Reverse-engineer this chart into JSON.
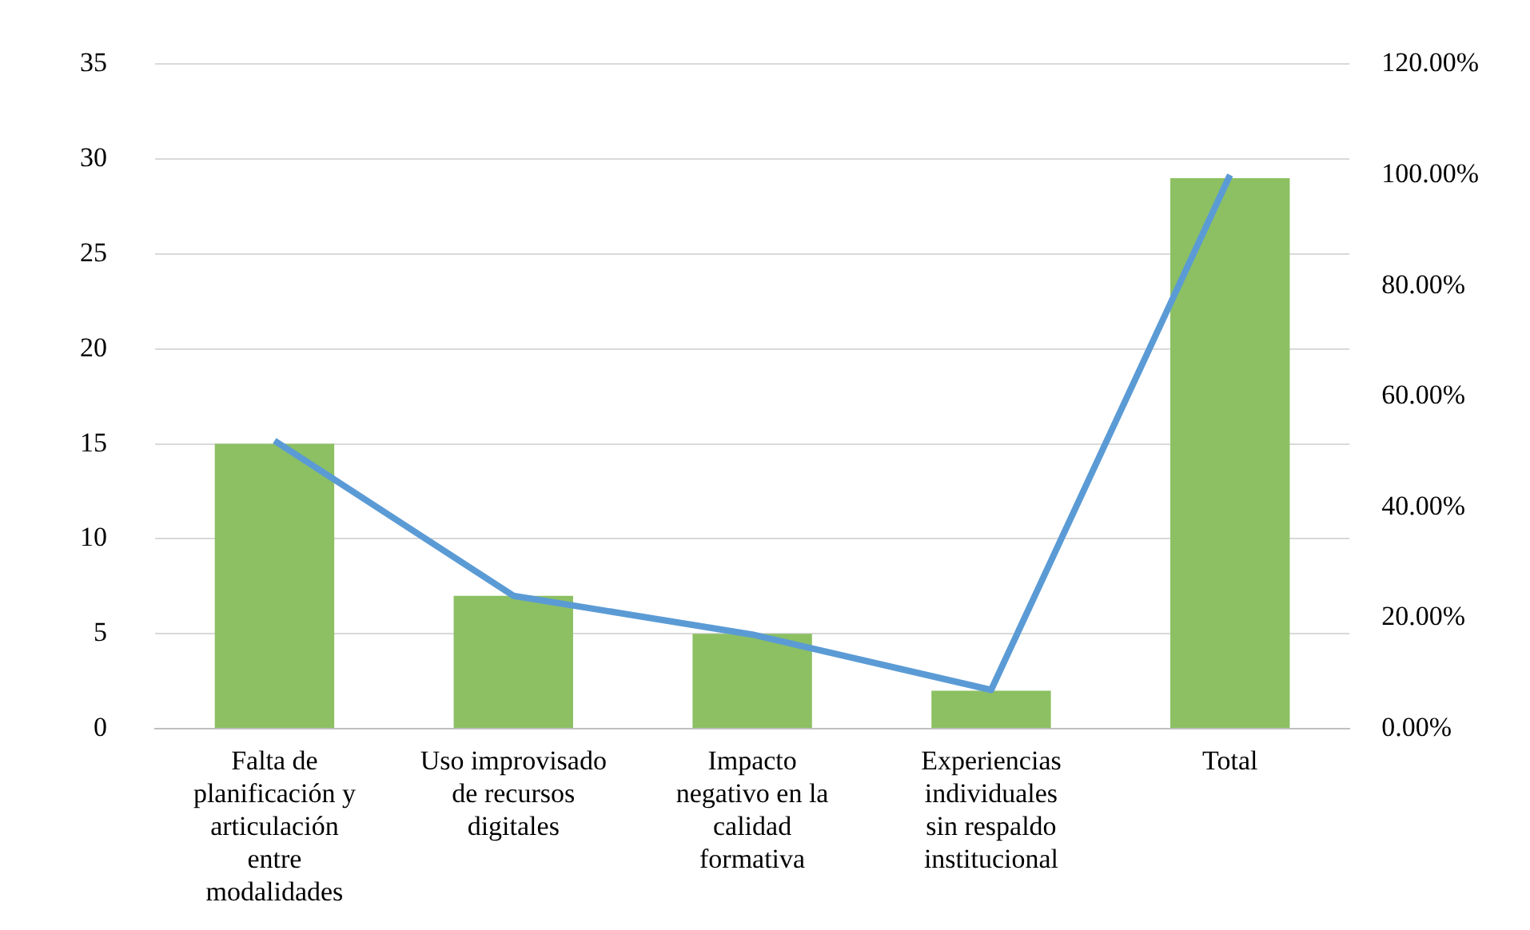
{
  "chart_data": {
    "type": "bar",
    "categories": [
      "Falta de planificación y articulación entre modalidades",
      "Uso improvisado de recursos digitales",
      "Impacto negativo en la calidad formativa",
      "Experiencias individuales sin respaldo institucional",
      "Total"
    ],
    "series": [
      {
        "color": "#8cc063",
        "values": [
          15,
          7,
          5,
          2,
          29
        ]
      },
      {
        "type": "line",
        "axis": "y2",
        "color": "#5b9bd5",
        "values": [
          52,
          24,
          17,
          7,
          100
        ]
      }
    ],
    "ylim": [
      0,
      35
    ],
    "yticks": [
      0,
      5,
      10,
      15,
      20,
      25,
      30,
      35
    ],
    "y2lim": [
      0,
      120
    ],
    "y2ticks": [
      {
        "value": 0,
        "label": "0.00%"
      },
      {
        "value": 20,
        "label": "20.00%"
      },
      {
        "value": 40,
        "label": "40.00%"
      },
      {
        "value": 60,
        "label": "60.00%"
      },
      {
        "value": 80,
        "label": "80.00%"
      },
      {
        "value": 100,
        "label": "100.00%"
      },
      {
        "value": 120,
        "label": "120.00%"
      }
    ],
    "grid": "y",
    "legend": false,
    "marker": "none"
  }
}
